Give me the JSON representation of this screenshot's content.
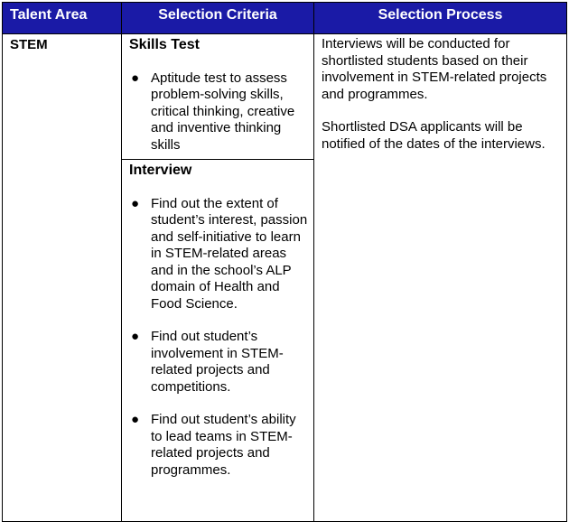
{
  "table": {
    "headers": [
      "Talent Area",
      "Selection Criteria",
      "Selection Process"
    ],
    "row": {
      "talent_area": "STEM",
      "criteria": [
        {
          "title": "Skills Test",
          "bullets": [
            "Aptitude test to assess problem-solving skills, critical thinking, creative and inventive thinking skills"
          ]
        },
        {
          "title": "Interview",
          "bullets": [
            "Find out the extent of student’s interest, passion and self-initiative to learn in STEM-related areas and in the school’s ALP domain of Health and Food Science.",
            "Find out student’s involvement in STEM-related projects and competitions.",
            "Find out student’s ability to lead teams in STEM-related projects and programmes."
          ]
        }
      ],
      "process": [
        "Interviews will be conducted for shortlisted students based on their involvement in STEM-related projects and programmes.",
        "Shortlisted DSA applicants will be notified of the dates of the interviews."
      ]
    }
  },
  "colors": {
    "header_background": "#1a1aa6",
    "header_text": "#ffffff",
    "border": "#000000"
  },
  "icons": {
    "bullet": "bullet-dot-icon"
  }
}
